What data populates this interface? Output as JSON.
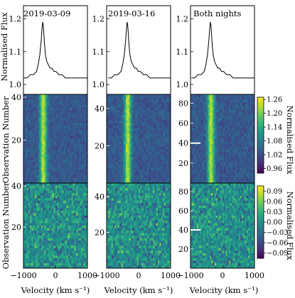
{
  "chart_data": {
    "type": "heatmap",
    "x_axis": {
      "label": "Velocity (km s⁻¹)",
      "lim": [
        -1000,
        1000
      ],
      "ticks": [
        -1000,
        0,
        1000
      ],
      "tick_labels": [
        "−1000",
        "0",
        "1000"
      ]
    },
    "ylabel_flux": "Normalised Flux",
    "ylabel_obs": "Observation Number",
    "flux_lim": [
      0.97,
      1.24
    ],
    "flux_ticks": [
      1.0,
      1.1,
      1.2
    ],
    "flux_tick_labels": [
      "1.0",
      "1.1",
      "1.2"
    ],
    "line_profile": {
      "x": [
        -1000,
        -900,
        -800,
        -700,
        -600,
        -550,
        -500,
        -460,
        -430,
        -410,
        -390,
        -370,
        -350,
        -320,
        -280,
        -230,
        -180,
        -120,
        -60,
        0,
        100,
        200,
        300,
        400,
        500,
        600,
        700,
        800,
        900,
        1000
      ],
      "y": [
        1.02,
        1.02,
        1.03,
        1.03,
        1.04,
        1.06,
        1.09,
        1.13,
        1.17,
        1.19,
        1.18,
        1.15,
        1.12,
        1.09,
        1.07,
        1.06,
        1.05,
        1.05,
        1.04,
        1.04,
        1.03,
        1.03,
        1.02,
        1.02,
        1.02,
        1.02,
        1.02,
        1.02,
        1.02,
        1.02
      ]
    },
    "panels": [
      {
        "title": "2019-03-09",
        "n_obs": 40,
        "obs_ticks": [
          20,
          40
        ],
        "peak_velocity": -380,
        "marker_obs": null
      },
      {
        "title": "2019-03-16",
        "n_obs": 46,
        "obs_ticks": [
          20,
          40
        ],
        "peak_velocity": -340,
        "marker_obs": null
      },
      {
        "title": "Both nights",
        "n_obs": 86,
        "obs_ticks": [
          20,
          40,
          60,
          80
        ],
        "extra_ticks_bottom": [
          40,
          60,
          80
        ],
        "tick_labels_top": [
          "20",
          "40",
          "60",
          "80"
        ],
        "peak_velocity": -360,
        "marker_obs": 40
      }
    ],
    "colorbar_top": {
      "label": "Normalised Flux",
      "range": [
        0.94,
        1.27
      ],
      "ticks": [
        0.96,
        1.02,
        1.08,
        1.14,
        1.2,
        1.26
      ],
      "tick_labels": [
        "0.96",
        "1.02",
        "1.08",
        "1.14",
        "1.20",
        "1.26"
      ]
    },
    "colorbar_bottom": {
      "label": "Normalised Flux",
      "range": [
        -0.105,
        0.105
      ],
      "ticks": [
        -0.09,
        -0.06,
        -0.03,
        0.0,
        0.03,
        0.06,
        0.09
      ],
      "tick_labels": [
        "−0.09",
        "−0.06",
        "−0.03",
        "0.00",
        "0.03",
        "0.06",
        "0.09"
      ]
    },
    "colormap": "viridis"
  }
}
